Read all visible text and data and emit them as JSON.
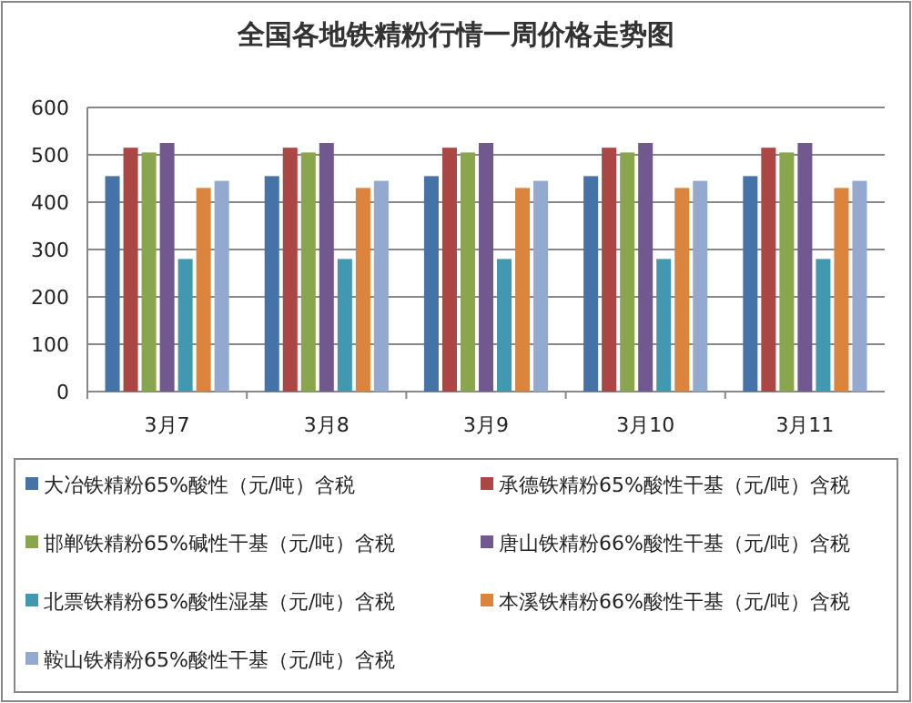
{
  "chart_data": {
    "type": "bar",
    "title": "全国各地铁精粉行情一周价格走势图",
    "categories": [
      "3月7",
      "3月8",
      "3月9",
      "3月10",
      "3月11"
    ],
    "series": [
      {
        "name": "大冶铁精粉65%酸性（元/吨）含税",
        "color": "#4572a7",
        "values": [
          455,
          455,
          455,
          455,
          455
        ]
      },
      {
        "name": "承德铁精粉65%酸性干基（元/吨）含税",
        "color": "#aa4643",
        "values": [
          515,
          515,
          515,
          515,
          515
        ]
      },
      {
        "name": "邯郸铁精粉65%碱性干基（元/吨）含税",
        "color": "#89a54e",
        "values": [
          505,
          505,
          505,
          505,
          505
        ]
      },
      {
        "name": "唐山铁精粉66%酸性干基（元/吨）含税",
        "color": "#71588f",
        "values": [
          525,
          525,
          525,
          525,
          525
        ]
      },
      {
        "name": "北票铁精粉65%酸性湿基（元/吨）含税",
        "color": "#4198af",
        "values": [
          280,
          280,
          280,
          280,
          280
        ]
      },
      {
        "name": "本溪铁精粉66%酸性干基（元/吨）含税",
        "color": "#db843d",
        "values": [
          430,
          430,
          430,
          430,
          430
        ]
      },
      {
        "name": "鞍山铁精粉65%酸性干基（元/吨）含税",
        "color": "#93a9cf",
        "values": [
          445,
          445,
          445,
          445,
          445
        ]
      }
    ],
    "ylim": [
      0,
      600
    ],
    "yticks": [
      0,
      100,
      200,
      300,
      400,
      500,
      600
    ],
    "grid": "y",
    "legend": "bottom"
  }
}
